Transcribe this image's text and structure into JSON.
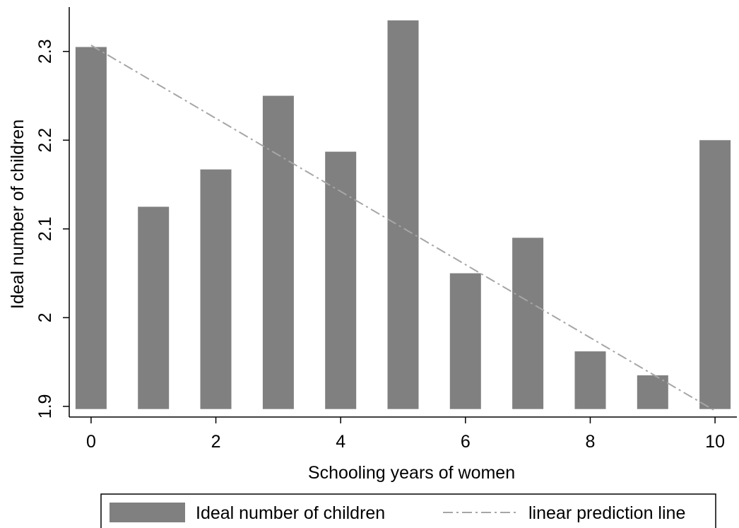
{
  "chart_data": {
    "type": "bar",
    "x": [
      0,
      1,
      2,
      3,
      4,
      5,
      6,
      7,
      8,
      9,
      10
    ],
    "series": [
      {
        "name": "Ideal number of children",
        "type": "bar",
        "color": "#808080",
        "values": [
          2.305,
          2.125,
          2.167,
          2.25,
          2.187,
          2.335,
          2.05,
          2.09,
          1.962,
          1.935,
          2.2
        ]
      },
      {
        "name": "linear prediction line",
        "type": "line",
        "style": "dash-dot",
        "color": "#a6a6a6",
        "points": [
          [
            0,
            2.307
          ],
          [
            10,
            1.895
          ]
        ]
      }
    ],
    "xlabel": "Schooling years of women",
    "ylabel": "Ideal number of children",
    "xlim": [
      -0.35,
      10.35
    ],
    "ylim": [
      1.888,
      2.35
    ],
    "bar_base": 1.897,
    "x_ticks": [
      0,
      2,
      4,
      6,
      8,
      10
    ],
    "x_tick_labels": [
      "0",
      "2",
      "4",
      "6",
      "8",
      "10"
    ],
    "y_ticks": [
      1.9,
      2.0,
      2.1,
      2.2,
      2.3
    ],
    "y_tick_labels": [
      "1.9",
      "2",
      "2.1",
      "2.2",
      "2.3"
    ],
    "grid": false,
    "legend": {
      "position": "bottom",
      "entries": [
        "Ideal number of children",
        "linear prediction line"
      ]
    }
  }
}
